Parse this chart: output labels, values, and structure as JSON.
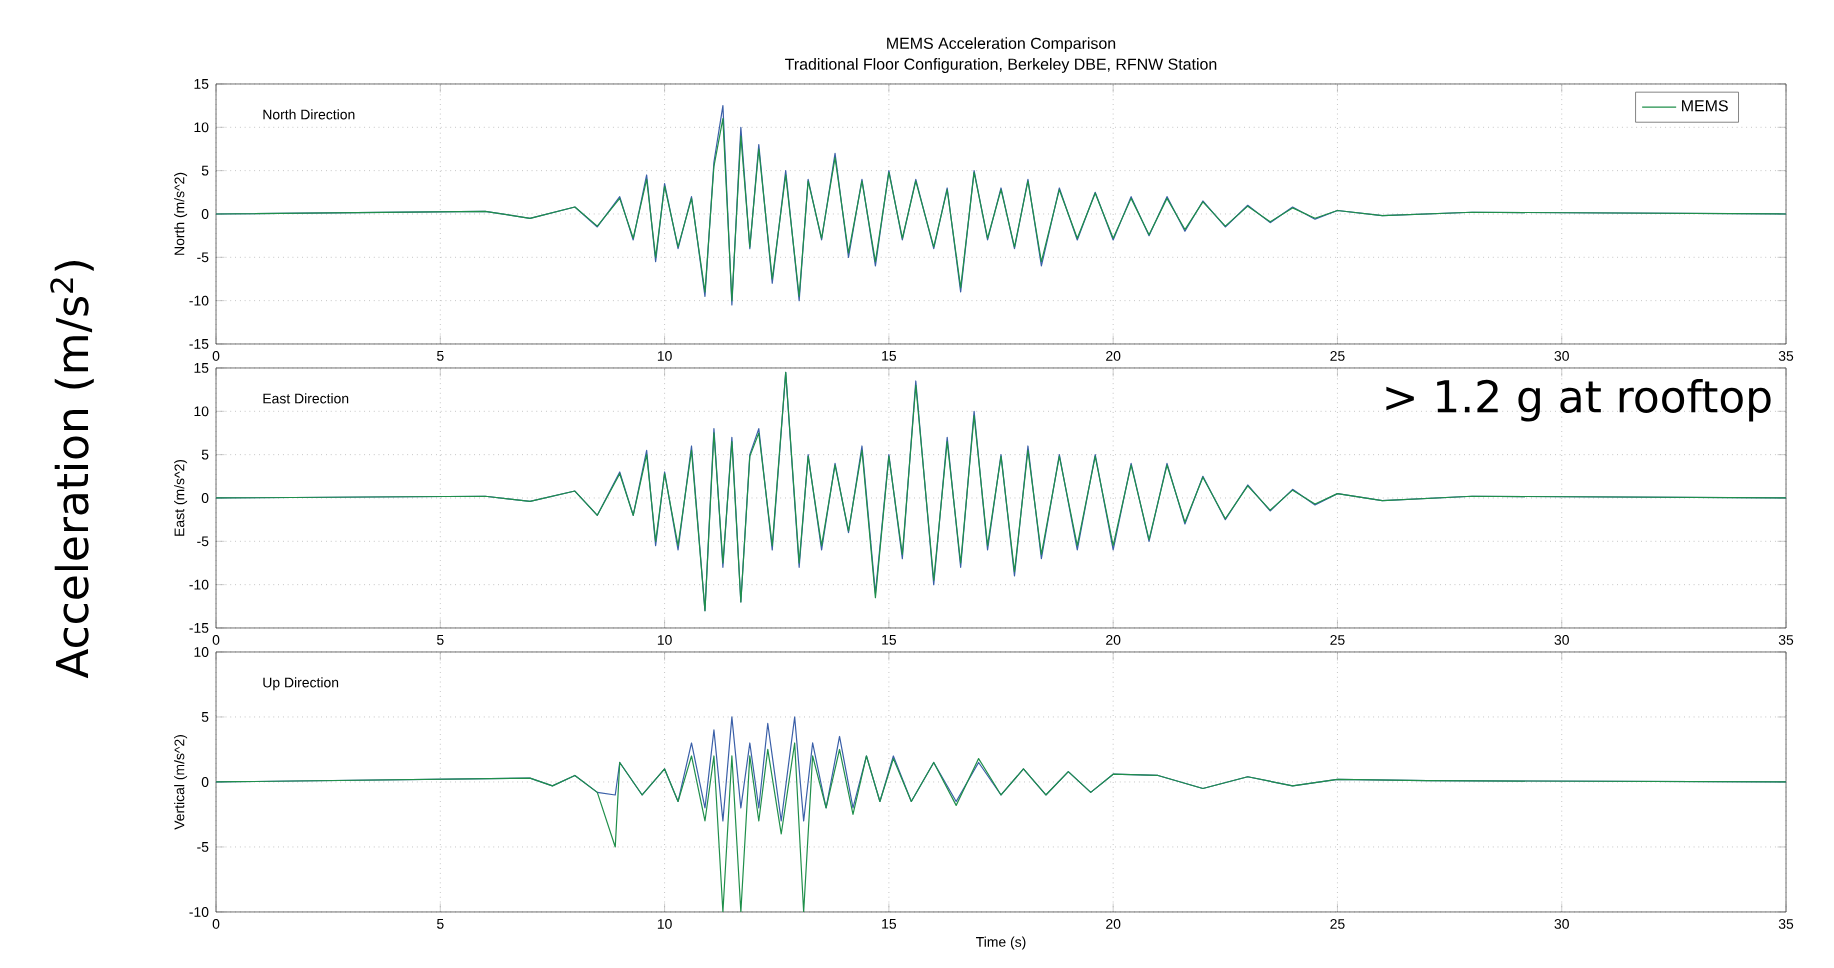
{
  "chart_data": [
    {
      "type": "line",
      "title": "MEMS Acceleration Comparison",
      "subtitle": "Traditional Floor Configuration, Berkeley DBE, RFNW Station",
      "ylabel": "North (m/s^2)",
      "annotations": [
        "North Direction"
      ],
      "grid": true,
      "legend": "top right",
      "xlim": [
        0,
        35
      ],
      "xticks": [
        0,
        5,
        10,
        15,
        20,
        25,
        30,
        35
      ],
      "ylim": [
        -15,
        15
      ],
      "yticks": [
        -15,
        -10,
        -5,
        0,
        5,
        10,
        15
      ],
      "x": [
        0,
        6,
        7,
        8,
        8.5,
        9,
        9.3,
        9.6,
        9.8,
        10,
        10.3,
        10.6,
        10.9,
        11.1,
        11.3,
        11.5,
        11.7,
        11.9,
        12.1,
        12.4,
        12.7,
        13,
        13.2,
        13.5,
        13.8,
        14.1,
        14.4,
        14.7,
        15,
        15.3,
        15.6,
        16,
        16.3,
        16.6,
        16.9,
        17.2,
        17.5,
        17.8,
        18.1,
        18.4,
        18.8,
        19.2,
        19.6,
        20,
        20.4,
        20.8,
        21.2,
        21.6,
        22,
        22.5,
        23,
        23.5,
        24,
        24.5,
        25,
        26,
        28,
        35
      ],
      "series": [
        {
          "color": "#3a5fa8",
          "values": [
            0,
            0.3,
            -0.5,
            0.8,
            -1.5,
            2,
            -3,
            4.5,
            -5.5,
            3.5,
            -4,
            2,
            -9.5,
            6,
            12.5,
            -10.5,
            10,
            -4,
            8,
            -8,
            5,
            -10,
            4,
            -3,
            7,
            -5,
            4,
            -6,
            5,
            -3,
            4,
            -4,
            3,
            -9,
            5,
            -3,
            3,
            -4,
            4,
            -6,
            3,
            -3,
            2.5,
            -3,
            2,
            -2.5,
            2,
            -2,
            1.5,
            -1.5,
            1,
            -1,
            0.8,
            -0.6,
            0.4,
            -0.2,
            0.2,
            0
          ]
        },
        {
          "name": "MEMS",
          "color": "#1f8f4a",
          "values": [
            0,
            0.3,
            -0.5,
            0.8,
            -1.4,
            1.8,
            -2.8,
            4,
            -5,
            3.2,
            -3.8,
            1.8,
            -9,
            5.5,
            11,
            -10,
            9,
            -3.8,
            7.5,
            -7.5,
            4.5,
            -9.5,
            3.8,
            -2.8,
            6.5,
            -4.5,
            3.8,
            -5.5,
            4.8,
            -2.8,
            3.8,
            -3.8,
            2.8,
            -8.5,
            4.8,
            -2.8,
            2.8,
            -3.8,
            3.8,
            -5.5,
            2.8,
            -2.8,
            2.4,
            -2.8,
            1.8,
            -2.4,
            1.8,
            -1.8,
            1.4,
            -1.4,
            0.9,
            -0.9,
            0.7,
            -0.5,
            0.4,
            -0.2,
            0.2,
            0
          ]
        }
      ]
    },
    {
      "type": "line",
      "ylabel": "East (m/s^2)",
      "annotations": [
        "East Direction",
        "> 1.2 g at rooftop",
        "Acceleration (m/s$^{2}$)"
      ],
      "grid": true,
      "xlim": [
        0,
        35
      ],
      "xticks": [
        0,
        5,
        10,
        15,
        20,
        25,
        30,
        35
      ],
      "ylim": [
        -15,
        15
      ],
      "yticks": [
        -15,
        -10,
        -5,
        0,
        5,
        10,
        15
      ],
      "x": [
        0,
        6,
        7,
        8,
        8.5,
        9,
        9.3,
        9.6,
        9.8,
        10,
        10.3,
        10.6,
        10.9,
        11.1,
        11.3,
        11.5,
        11.7,
        11.9,
        12.1,
        12.4,
        12.7,
        13,
        13.2,
        13.5,
        13.8,
        14.1,
        14.4,
        14.7,
        15,
        15.3,
        15.6,
        16,
        16.3,
        16.6,
        16.9,
        17.2,
        17.5,
        17.8,
        18.1,
        18.4,
        18.8,
        19.2,
        19.6,
        20,
        20.4,
        20.8,
        21.2,
        21.6,
        22,
        22.5,
        23,
        23.5,
        24,
        24.5,
        25,
        26,
        28,
        35
      ],
      "series": [
        {
          "color": "#3a5fa8",
          "values": [
            0,
            0.2,
            -0.4,
            0.8,
            -2,
            3,
            -2,
            5.5,
            -5.5,
            3,
            -6,
            6,
            -13,
            8,
            -8,
            7,
            -12,
            5,
            8,
            -6,
            14.5,
            -8,
            5,
            -6,
            4,
            -4,
            6,
            -11,
            5,
            -7,
            13.5,
            -10,
            7,
            -8,
            10,
            -6,
            5,
            -9,
            6,
            -7,
            5,
            -6,
            5,
            -6,
            4,
            -5,
            4,
            -3,
            2.5,
            -2.5,
            1.5,
            -1.5,
            1,
            -0.8,
            0.5,
            -0.3,
            0.2,
            0
          ]
        },
        {
          "color": "#1f8f4a",
          "values": [
            0,
            0.2,
            -0.4,
            0.8,
            -2,
            2.8,
            -2,
            5,
            -5,
            2.8,
            -5.5,
            5.5,
            -13,
            7.5,
            -7.5,
            6.5,
            -12,
            4.8,
            7.5,
            -5.5,
            14.5,
            -7.5,
            4.8,
            -5.5,
            3.8,
            -3.8,
            5.5,
            -11.5,
            4.8,
            -6.5,
            13,
            -9.5,
            6.5,
            -7.5,
            9.5,
            -5.5,
            4.8,
            -8.5,
            5.5,
            -6.5,
            4.8,
            -5.5,
            4.8,
            -5.5,
            3.8,
            -4.8,
            3.8,
            -2.8,
            2.4,
            -2.4,
            1.4,
            -1.4,
            0.9,
            -0.7,
            0.5,
            -0.3,
            0.2,
            0
          ]
        }
      ]
    },
    {
      "type": "line",
      "xlabel": "Time (s)",
      "ylabel": "Vertical (m/s^2)",
      "annotations": [
        "Up Direction"
      ],
      "grid": true,
      "xlim": [
        0,
        35
      ],
      "xticks": [
        0,
        5,
        10,
        15,
        20,
        25,
        30,
        35
      ],
      "ylim": [
        -10,
        10
      ],
      "yticks": [
        -10,
        -5,
        0,
        5,
        10
      ],
      "x": [
        0,
        7,
        7.5,
        8,
        8.5,
        8.9,
        9,
        9.5,
        10,
        10.3,
        10.6,
        10.9,
        11.1,
        11.3,
        11.5,
        11.7,
        11.9,
        12.1,
        12.3,
        12.6,
        12.9,
        13.1,
        13.3,
        13.6,
        13.9,
        14.2,
        14.5,
        14.8,
        15.1,
        15.5,
        16,
        16.5,
        17,
        17.5,
        18,
        18.5,
        19,
        19.5,
        20,
        21,
        22,
        23,
        24,
        25,
        27,
        35
      ],
      "series": [
        {
          "color": "#3a5fa8",
          "values": [
            0,
            0.3,
            -0.3,
            0.5,
            -0.8,
            -1,
            1.5,
            -1,
            1,
            -1.5,
            3,
            -2,
            4,
            -3,
            5,
            -2,
            3,
            -2,
            4.5,
            -3,
            5,
            -3,
            3,
            -2,
            3.5,
            -2,
            2,
            -1.5,
            2,
            -1.5,
            1.5,
            -1.5,
            1.5,
            -1,
            1,
            -1,
            0.8,
            -0.8,
            0.6,
            0.5,
            -0.5,
            0.4,
            -0.3,
            0.2,
            0.1,
            0
          ]
        },
        {
          "color": "#1f8f4a",
          "values": [
            0,
            0.3,
            -0.3,
            0.5,
            -0.8,
            -5,
            1.5,
            -1,
            1,
            -1.5,
            2,
            -3,
            2,
            -10,
            2,
            -10,
            2,
            -3,
            2.5,
            -4,
            3,
            -10,
            2,
            -2,
            2.5,
            -2.5,
            2,
            -1.5,
            1.8,
            -1.5,
            1.5,
            -1.8,
            1.8,
            -1,
            1,
            -1,
            0.8,
            -0.8,
            0.6,
            0.5,
            -0.5,
            0.4,
            -0.3,
            0.2,
            0.1,
            0
          ]
        }
      ]
    }
  ]
}
